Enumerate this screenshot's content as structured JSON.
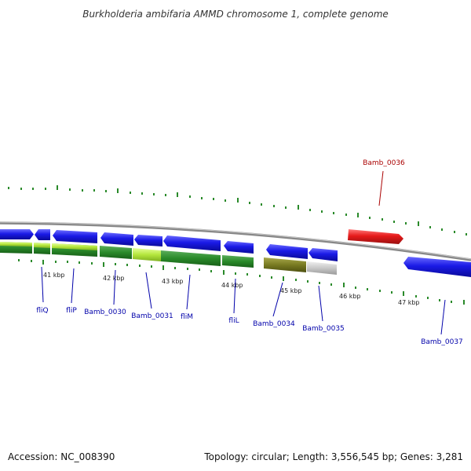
{
  "title": "Burkholderia ambifaria AMMD chromosome 1, complete genome",
  "accession": "Accession: NC_008390",
  "topology": "Topology: circular; Length: 3,556,545 bp; Genes: 3,281",
  "colors": {
    "forward_gene": "#1f1fe6",
    "highlight_gene": "#e61a1a",
    "backbone": "#808080",
    "tick": "#2a8a2a",
    "label_blue": "#0000aa",
    "label_red": "#aa0000"
  },
  "scale_labels": [
    "41 kbp",
    "42 kbp",
    "43 kbp",
    "44 kbp",
    "45 kbp",
    "46 kbp",
    "47 kbp"
  ],
  "gene_labels": [
    {
      "name": "fliQ",
      "color": "blue"
    },
    {
      "name": "fliP",
      "color": "blue"
    },
    {
      "name": "Bamb_0030",
      "color": "blue"
    },
    {
      "name": "Bamb_0031",
      "color": "blue"
    },
    {
      "name": "fliM",
      "color": "blue"
    },
    {
      "name": "fliL",
      "color": "blue"
    },
    {
      "name": "Bamb_0034",
      "color": "blue"
    },
    {
      "name": "Bamb_0035",
      "color": "blue"
    },
    {
      "name": "Bamb_0036",
      "color": "red"
    },
    {
      "name": "Bamb_0037",
      "color": "blue"
    }
  ]
}
